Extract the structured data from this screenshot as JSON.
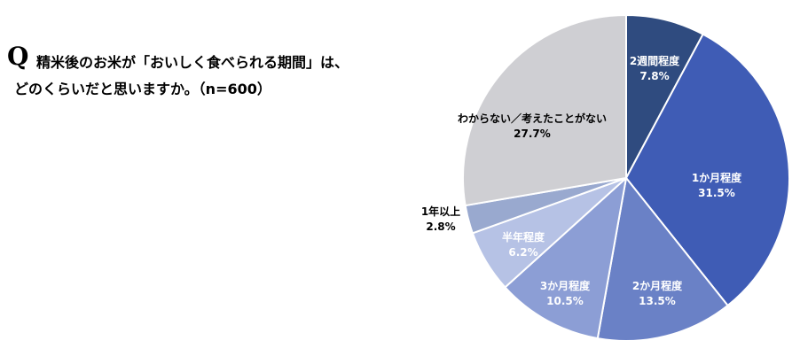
{
  "question": {
    "mark": "Q",
    "line1": "精米後のお米が「おいしく食べられる期間」は、",
    "line2": "どのくらいだと思いますか。（n=600）"
  },
  "chart_data": {
    "type": "pie",
    "start_angle_deg": 0,
    "direction": "clockwise",
    "slices": [
      {
        "label": "2週間程度",
        "value": 7.8,
        "display": "7.8%",
        "color": "#2f4b7f",
        "label_color": "#ffffff"
      },
      {
        "label": "1か月程度",
        "value": 31.5,
        "display": "31.5%",
        "color": "#3f5cb5",
        "label_color": "#ffffff"
      },
      {
        "label": "2か月程度",
        "value": 13.5,
        "display": "13.5%",
        "color": "#6a81c6",
        "label_color": "#ffffff"
      },
      {
        "label": "3か月程度",
        "value": 10.5,
        "display": "10.5%",
        "color": "#8c9ed5",
        "label_color": "#ffffff"
      },
      {
        "label": "半年程度",
        "value": 6.2,
        "display": "6.2%",
        "color": "#b6c2e5",
        "label_color": "#ffffff"
      },
      {
        "label": "1年以上",
        "value": 2.8,
        "display": "2.8%",
        "color": "#99a9cf",
        "label_color": "#000000"
      },
      {
        "label": "わからない／考えたことがない",
        "value": 27.7,
        "display": "27.7%",
        "color": "#cfcfd3",
        "label_color": "#000000"
      }
    ]
  }
}
